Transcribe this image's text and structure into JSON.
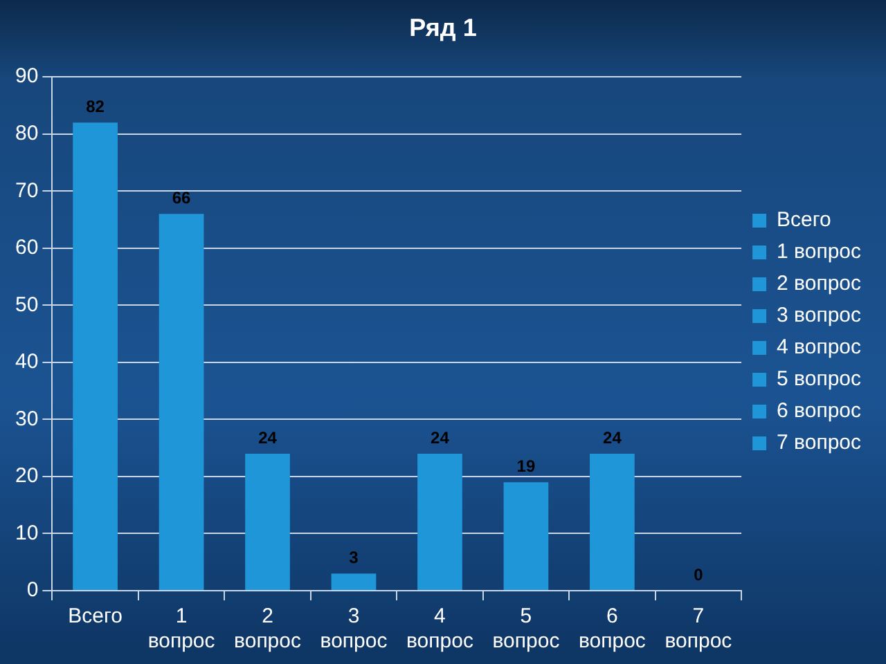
{
  "chart_data": {
    "type": "bar",
    "title": "Ряд 1",
    "categories": [
      "Всего",
      "1 вопрос",
      "2 вопрос",
      "3 вопрос",
      "4 вопрос",
      "5 вопрос",
      "6 вопрос",
      "7 вопрос"
    ],
    "series": [
      {
        "name": "Всего",
        "color": "#1f96d8",
        "values": [
          82,
          null,
          null,
          null,
          null,
          null,
          null,
          null
        ]
      },
      {
        "name": "1 вопрос",
        "color": "#1f96d8",
        "values": [
          null,
          66,
          null,
          null,
          null,
          null,
          null,
          null
        ]
      },
      {
        "name": "2 вопрос",
        "color": "#1f96d8",
        "values": [
          null,
          null,
          24,
          null,
          null,
          null,
          null,
          null
        ]
      },
      {
        "name": "3 вопрос",
        "color": "#1f96d8",
        "values": [
          null,
          null,
          null,
          3,
          null,
          null,
          null,
          null
        ]
      },
      {
        "name": "4 вопрос",
        "color": "#1f96d8",
        "values": [
          null,
          null,
          null,
          null,
          24,
          null,
          null,
          null
        ]
      },
      {
        "name": "5 вопрос",
        "color": "#1f96d8",
        "values": [
          null,
          null,
          null,
          null,
          null,
          19,
          null,
          null
        ]
      },
      {
        "name": "6 вопрос",
        "color": "#1f96d8",
        "values": [
          null,
          null,
          null,
          null,
          null,
          null,
          24,
          null
        ]
      },
      {
        "name": "7 вопрос",
        "color": "#1f96d8",
        "values": [
          null,
          null,
          null,
          null,
          null,
          null,
          null,
          0
        ]
      }
    ],
    "ylim": [
      0,
      90
    ],
    "yticks": [
      0,
      10,
      20,
      30,
      40,
      50,
      60,
      70,
      80,
      90
    ],
    "grid": "y",
    "legend": "right",
    "data_labels": true
  }
}
